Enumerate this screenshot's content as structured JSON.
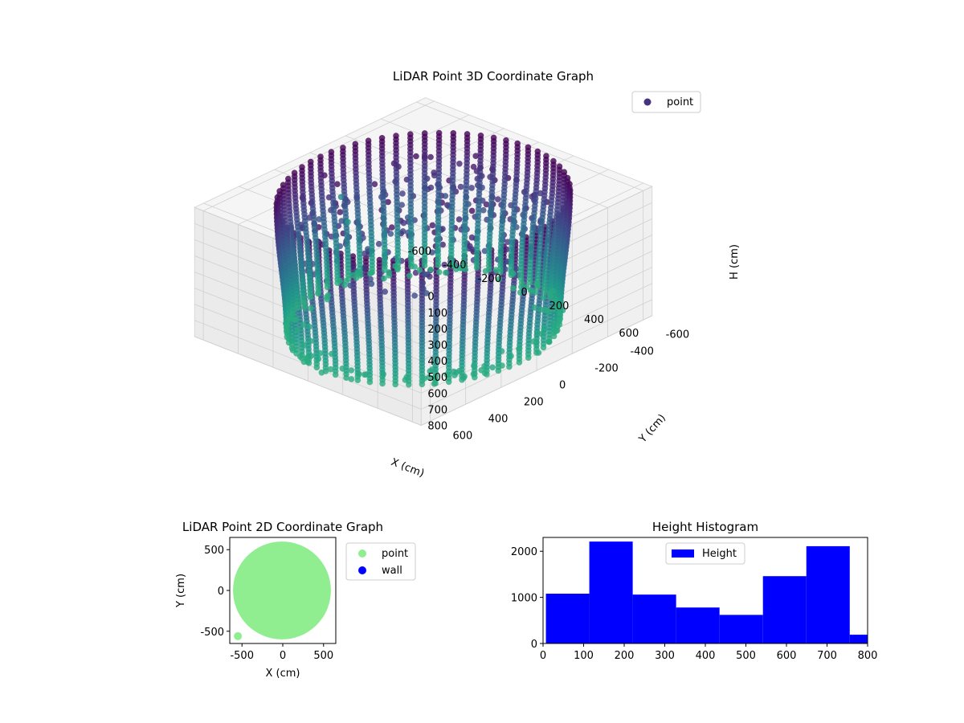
{
  "chart_data": [
    {
      "type": "scatter",
      "title": "LiDAR Point 3D Coordinate Graph",
      "xlabel": "X (cm)",
      "ylabel": "Y (cm)",
      "zlabel": "H (cm)",
      "xlim": [
        -650,
        650
      ],
      "ylim": [
        -650,
        650
      ],
      "zlim": [
        0,
        800
      ],
      "z_inverted": true,
      "x_ticks": [
        "-600",
        "-400",
        "-200",
        "0",
        "200",
        "400",
        "600"
      ],
      "y_ticks": [
        "-600",
        "-400",
        "-200",
        "0",
        "200",
        "400",
        "600"
      ],
      "z_ticks": [
        "0",
        "100",
        "200",
        "300",
        "400",
        "500",
        "600",
        "700",
        "800"
      ],
      "legend": [
        "point"
      ],
      "legend_position": "upper-right",
      "colormap": "viridis",
      "series": [
        {
          "name": "point",
          "description_shape": "cylindrical wall of vertical scan columns, radius ~600 cm, height 0-800 cm, plus scattered interior points",
          "wall_radius": 600,
          "height_range": [
            0,
            800
          ]
        }
      ]
    },
    {
      "type": "scatter",
      "title": "LiDAR Point 2D Coordinate Graph",
      "xlabel": "X (cm)",
      "ylabel": "Y (cm)",
      "xlim": [
        -650,
        650
      ],
      "ylim": [
        -650,
        650
      ],
      "x_ticks": [
        "-500",
        "0",
        "500"
      ],
      "y_ticks": [
        "-500",
        "0",
        "500"
      ],
      "legend": [
        "point",
        "wall"
      ],
      "legend_position": "outside-right",
      "colors": {
        "point": "#90ee90",
        "wall": "#0000ff"
      },
      "series": [
        {
          "name": "point",
          "fill_radius": 600,
          "outlier": [
            -550,
            -560
          ]
        },
        {
          "name": "wall",
          "values": []
        }
      ]
    },
    {
      "type": "bar",
      "title": "Height Histogram",
      "xlabel": "",
      "ylabel": "",
      "xlim": [
        0,
        800
      ],
      "ylim": [
        0,
        2300
      ],
      "x_ticks": [
        "0",
        "100",
        "200",
        "300",
        "400",
        "500",
        "600",
        "700",
        "800"
      ],
      "y_ticks": [
        "0",
        "1000",
        "2000"
      ],
      "legend": [
        "Height"
      ],
      "legend_position": "upper-center",
      "color": "#0000ff",
      "bins": [
        {
          "start": 7,
          "end": 114,
          "count": 1080
        },
        {
          "start": 114,
          "end": 221,
          "count": 2210
        },
        {
          "start": 221,
          "end": 328,
          "count": 1060
        },
        {
          "start": 328,
          "end": 435,
          "count": 780
        },
        {
          "start": 435,
          "end": 542,
          "count": 620
        },
        {
          "start": 542,
          "end": 649,
          "count": 1460
        },
        {
          "start": 649,
          "end": 756,
          "count": 2110
        },
        {
          "start": 756,
          "end": 863,
          "count": 190
        }
      ]
    }
  ]
}
